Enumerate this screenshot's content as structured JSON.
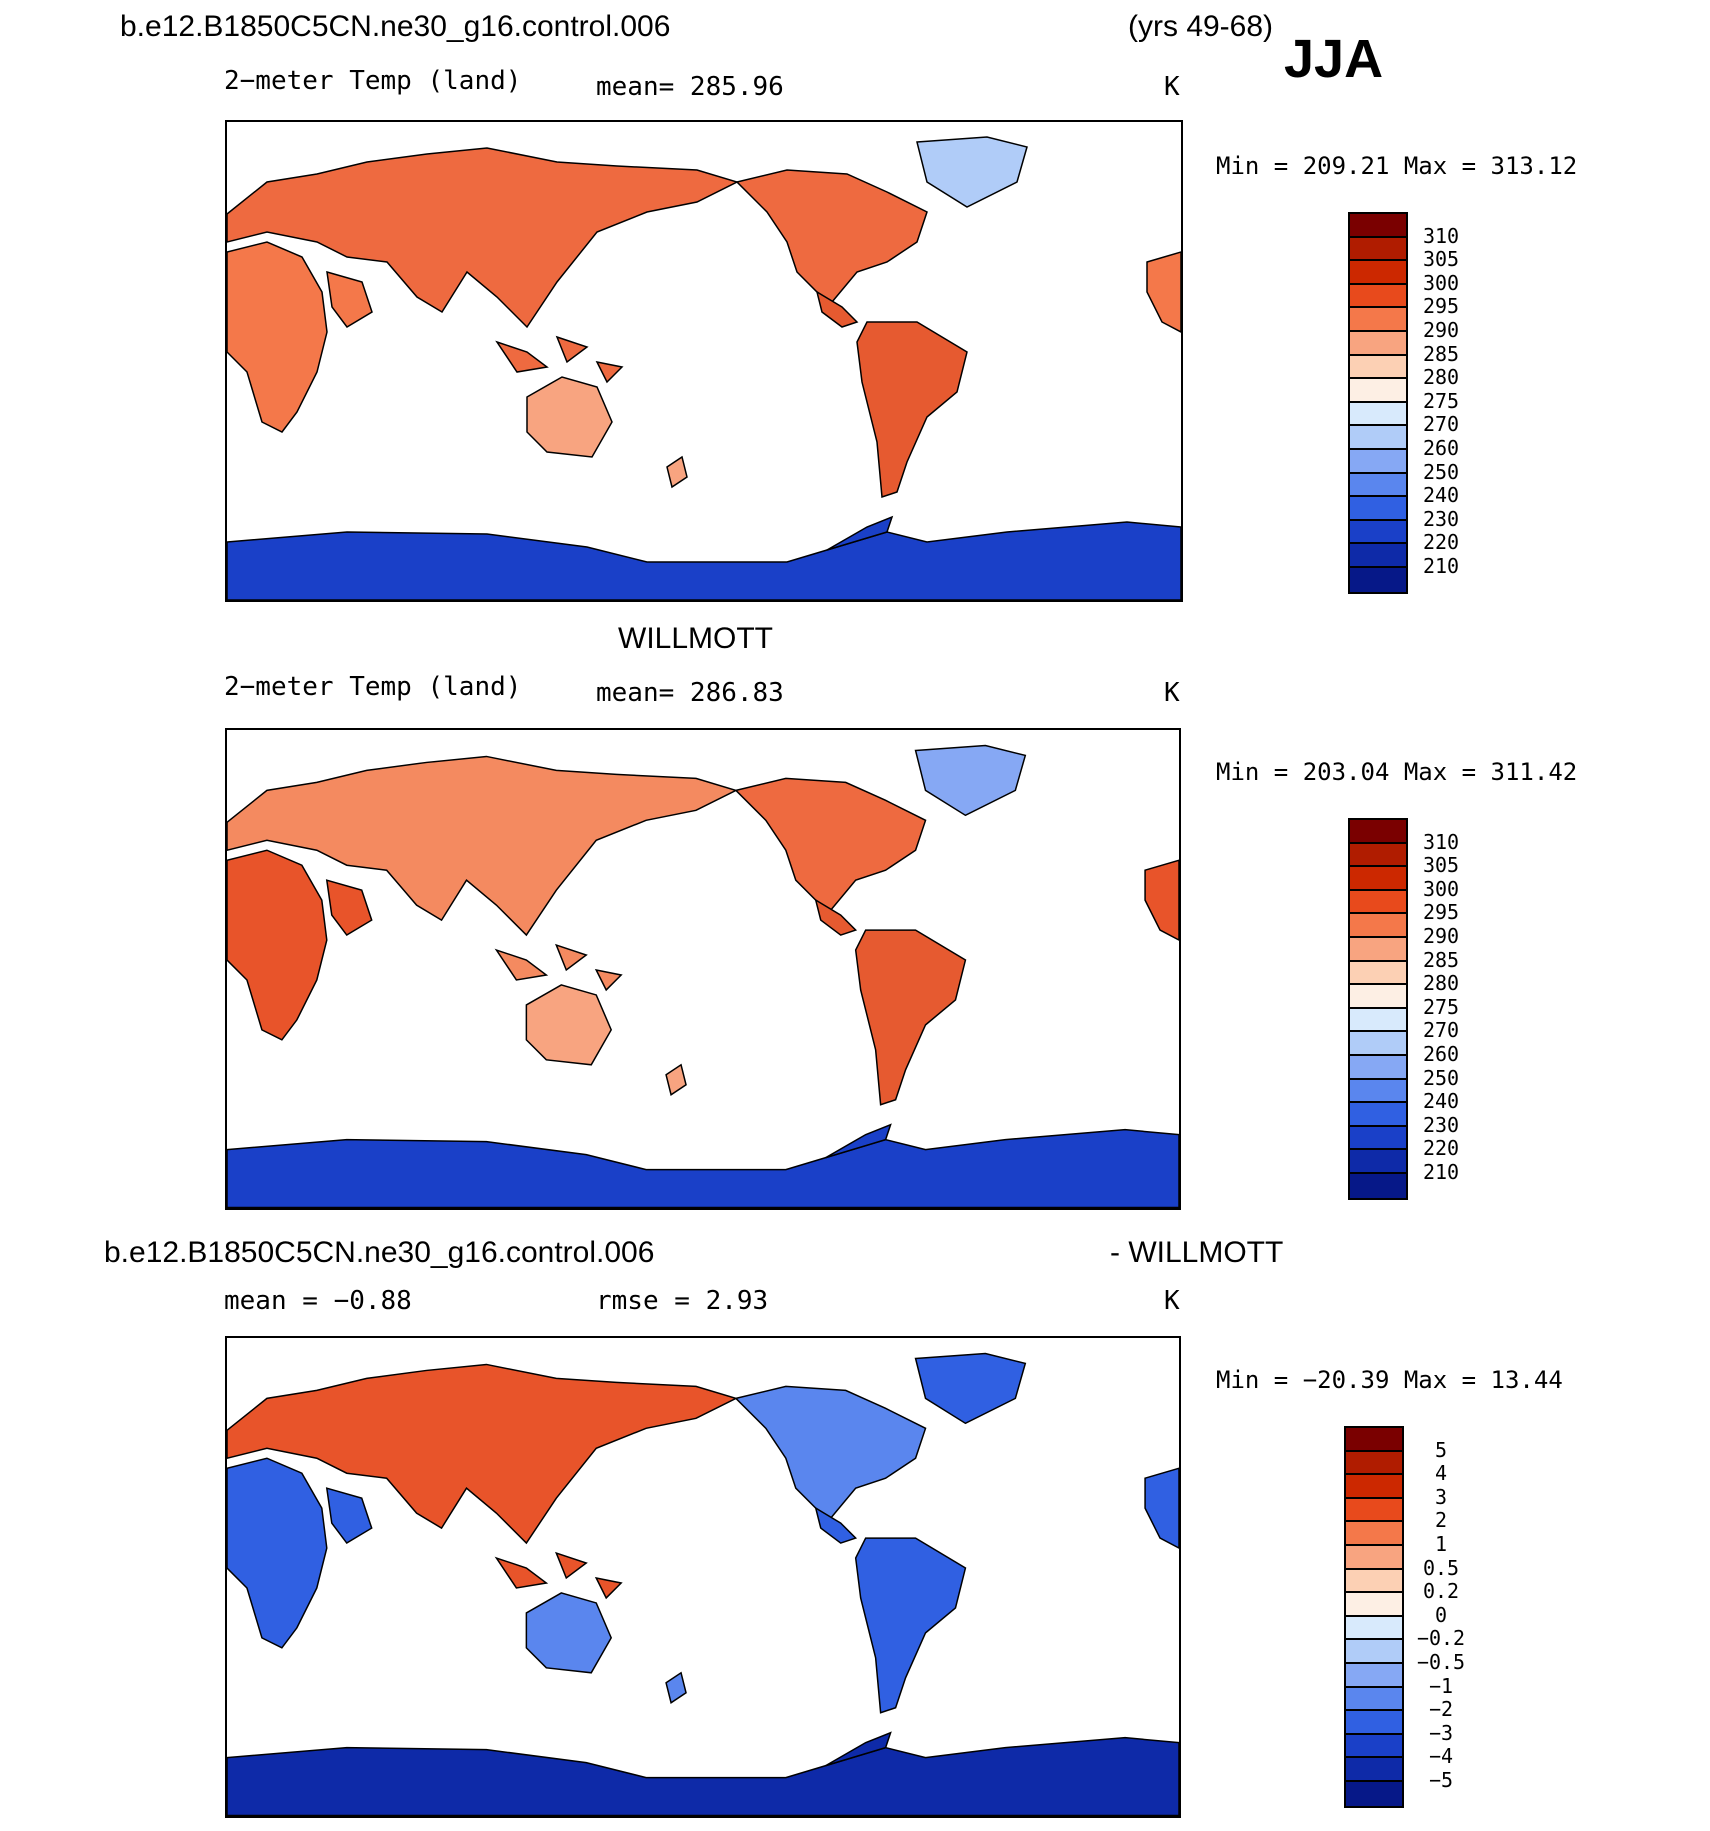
{
  "header": {
    "case_name": "b.e12.B1850C5CN.ne30_g16.control.006",
    "years": "(yrs 49-68)",
    "season": "JJA"
  },
  "panels": [
    {
      "id": "model",
      "title": "",
      "variable": "2−meter Temp (land)",
      "stat": "mean=  285.96",
      "units": "K",
      "minmax": "Min  =  209.21  Max  =  313.12",
      "colorbar": {
        "labels": [
          "310",
          "305",
          "300",
          "295",
          "290",
          "285",
          "280",
          "275",
          "270",
          "260",
          "250",
          "240",
          "230",
          "220",
          "210"
        ],
        "colors": [
          "#7a0000",
          "#b01c00",
          "#cc2800",
          "#e84a1c",
          "#f4784a",
          "#f8a480",
          "#fcd0b4",
          "#fdefe4",
          "#d8eafc",
          "#b0ccf8",
          "#86a8f4",
          "#5a86ee",
          "#3060e2",
          "#1a40c8",
          "#0e2aa8",
          "#061888"
        ]
      },
      "continent_colors": {
        "eurasia": "#ee6a40",
        "africa": "#f4784a",
        "north_america": "#ee6a40",
        "south_america": "#e65a30",
        "australia": "#f8a480",
        "greenland": "#b0ccf8",
        "antarctica": "#1a40c8"
      }
    },
    {
      "id": "obs",
      "title": "WILLMOTT",
      "variable": "2−meter Temp (land)",
      "stat": "mean=  286.83",
      "units": "K",
      "minmax": "Min  =  203.04  Max  =  311.42",
      "colorbar": {
        "labels": [
          "310",
          "305",
          "300",
          "295",
          "290",
          "285",
          "280",
          "275",
          "270",
          "260",
          "250",
          "240",
          "230",
          "220",
          "210"
        ],
        "colors": [
          "#7a0000",
          "#b01c00",
          "#cc2800",
          "#e84a1c",
          "#f4784a",
          "#f8a480",
          "#fcd0b4",
          "#fdefe4",
          "#d8eafc",
          "#b0ccf8",
          "#86a8f4",
          "#5a86ee",
          "#3060e2",
          "#1a40c8",
          "#0e2aa8",
          "#061888"
        ]
      },
      "continent_colors": {
        "eurasia": "#f48a60",
        "africa": "#e8542a",
        "north_america": "#ee6a40",
        "south_america": "#e65a30",
        "australia": "#f8a480",
        "greenland": "#86a8f4",
        "antarctica": "#1a40c8"
      }
    },
    {
      "id": "diff",
      "title_left": "b.e12.B1850C5CN.ne30_g16.control.006",
      "title_right": "- WILLMOTT",
      "stat_left": "mean  =     −0.88",
      "stat_right": "rmse  =     2.93",
      "units": "K",
      "minmax": "Min  =  −20.39  Max  =    13.44",
      "colorbar": {
        "labels": [
          "5",
          "4",
          "3",
          "2",
          "1",
          "0.5",
          "0.2",
          "0",
          "−0.2",
          "−0.5",
          "−1",
          "−2",
          "−3",
          "−4",
          "−5"
        ],
        "colors": [
          "#7a0000",
          "#b01c00",
          "#cc2800",
          "#e84a1c",
          "#f4784a",
          "#f8a480",
          "#fcd0b4",
          "#fdefe4",
          "#d8eafc",
          "#b0ccf8",
          "#86a8f4",
          "#5a86ee",
          "#3060e2",
          "#1a40c8",
          "#0e2aa8",
          "#061888"
        ]
      },
      "continent_colors": {
        "eurasia": "#e8542a",
        "africa": "#3060e2",
        "north_america": "#5a86ee",
        "south_america": "#3060e2",
        "australia": "#5a86ee",
        "greenland": "#3060e2",
        "antarctica": "#0e2aa8"
      }
    }
  ]
}
